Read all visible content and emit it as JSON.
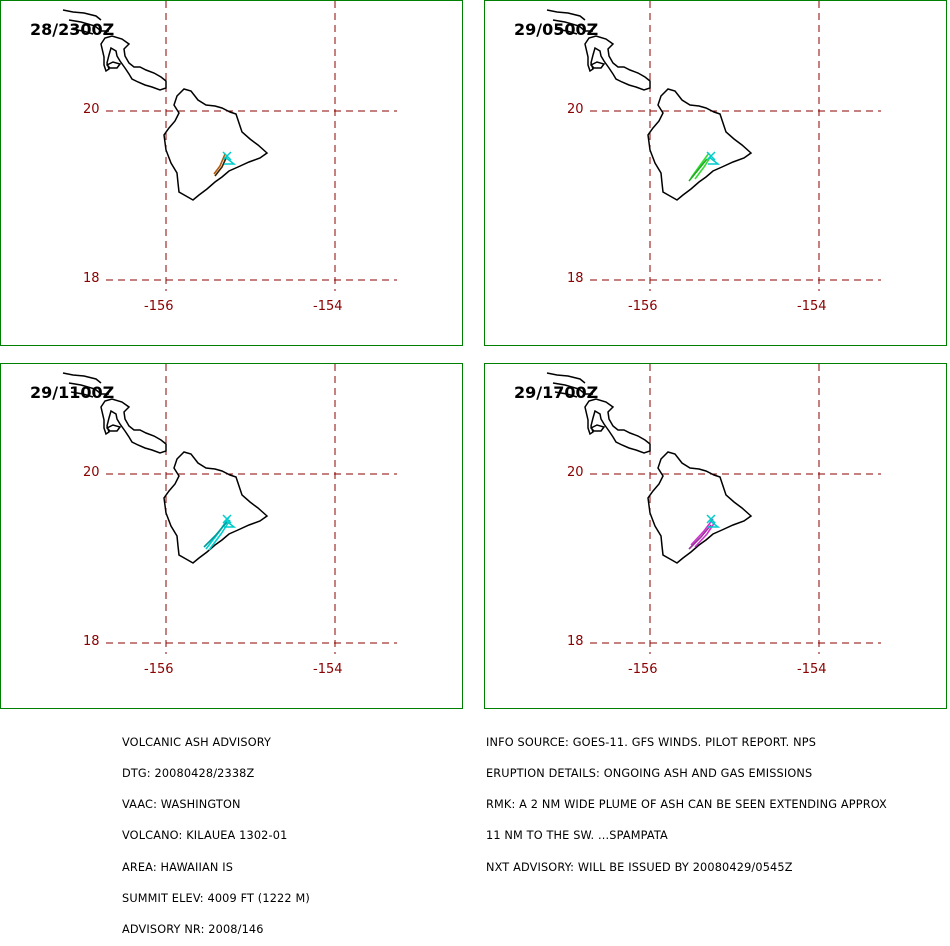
{
  "panels": [
    {
      "time": "28/2300Z",
      "plume_color": "#b45a0a",
      "plume_color2": "#3c2200"
    },
    {
      "time": "29/0500Z",
      "plume_color": "#33dd33",
      "plume_color2": "#22aa22"
    },
    {
      "time": "29/1100Z",
      "plume_color": "#00cccc",
      "plume_color2": "#009999"
    },
    {
      "time": "29/1700Z",
      "plume_color": "#cc33cc",
      "plume_color2": "#993399"
    }
  ],
  "axis": {
    "lat_labels": [
      "20",
      "18"
    ],
    "lon_labels": [
      "-156",
      "-154"
    ]
  },
  "colors": {
    "grid": "#8b0000",
    "border": "#008000",
    "coast": "#000000",
    "vent_marker": "#00cccc"
  },
  "advisory_left": [
    "VOLCANIC ASH ADVISORY",
    "DTG: 20080428/2338Z",
    "VAAC: WASHINGTON",
    "VOLCANO: KILAUEA 1302-01",
    "AREA: HAWAIIAN IS",
    "SUMMIT ELEV: 4009 FT (1222 M)",
    "ADVISORY NR: 2008/146"
  ],
  "advisory_right": [
    "INFO SOURCE: GOES-11. GFS WINDS. PILOT REPORT. NPS",
    "ERUPTION DETAILS: ONGOING ASH AND GAS EMISSIONS",
    "RMK: A 2 NM WIDE PLUME OF ASH CAN BE SEEN EXTENDING APPROX",
    "11 NM TO THE SW. ...SPAMPATA",
    "NXT ADVISORY: WILL BE ISSUED BY 20080429/0545Z"
  ]
}
